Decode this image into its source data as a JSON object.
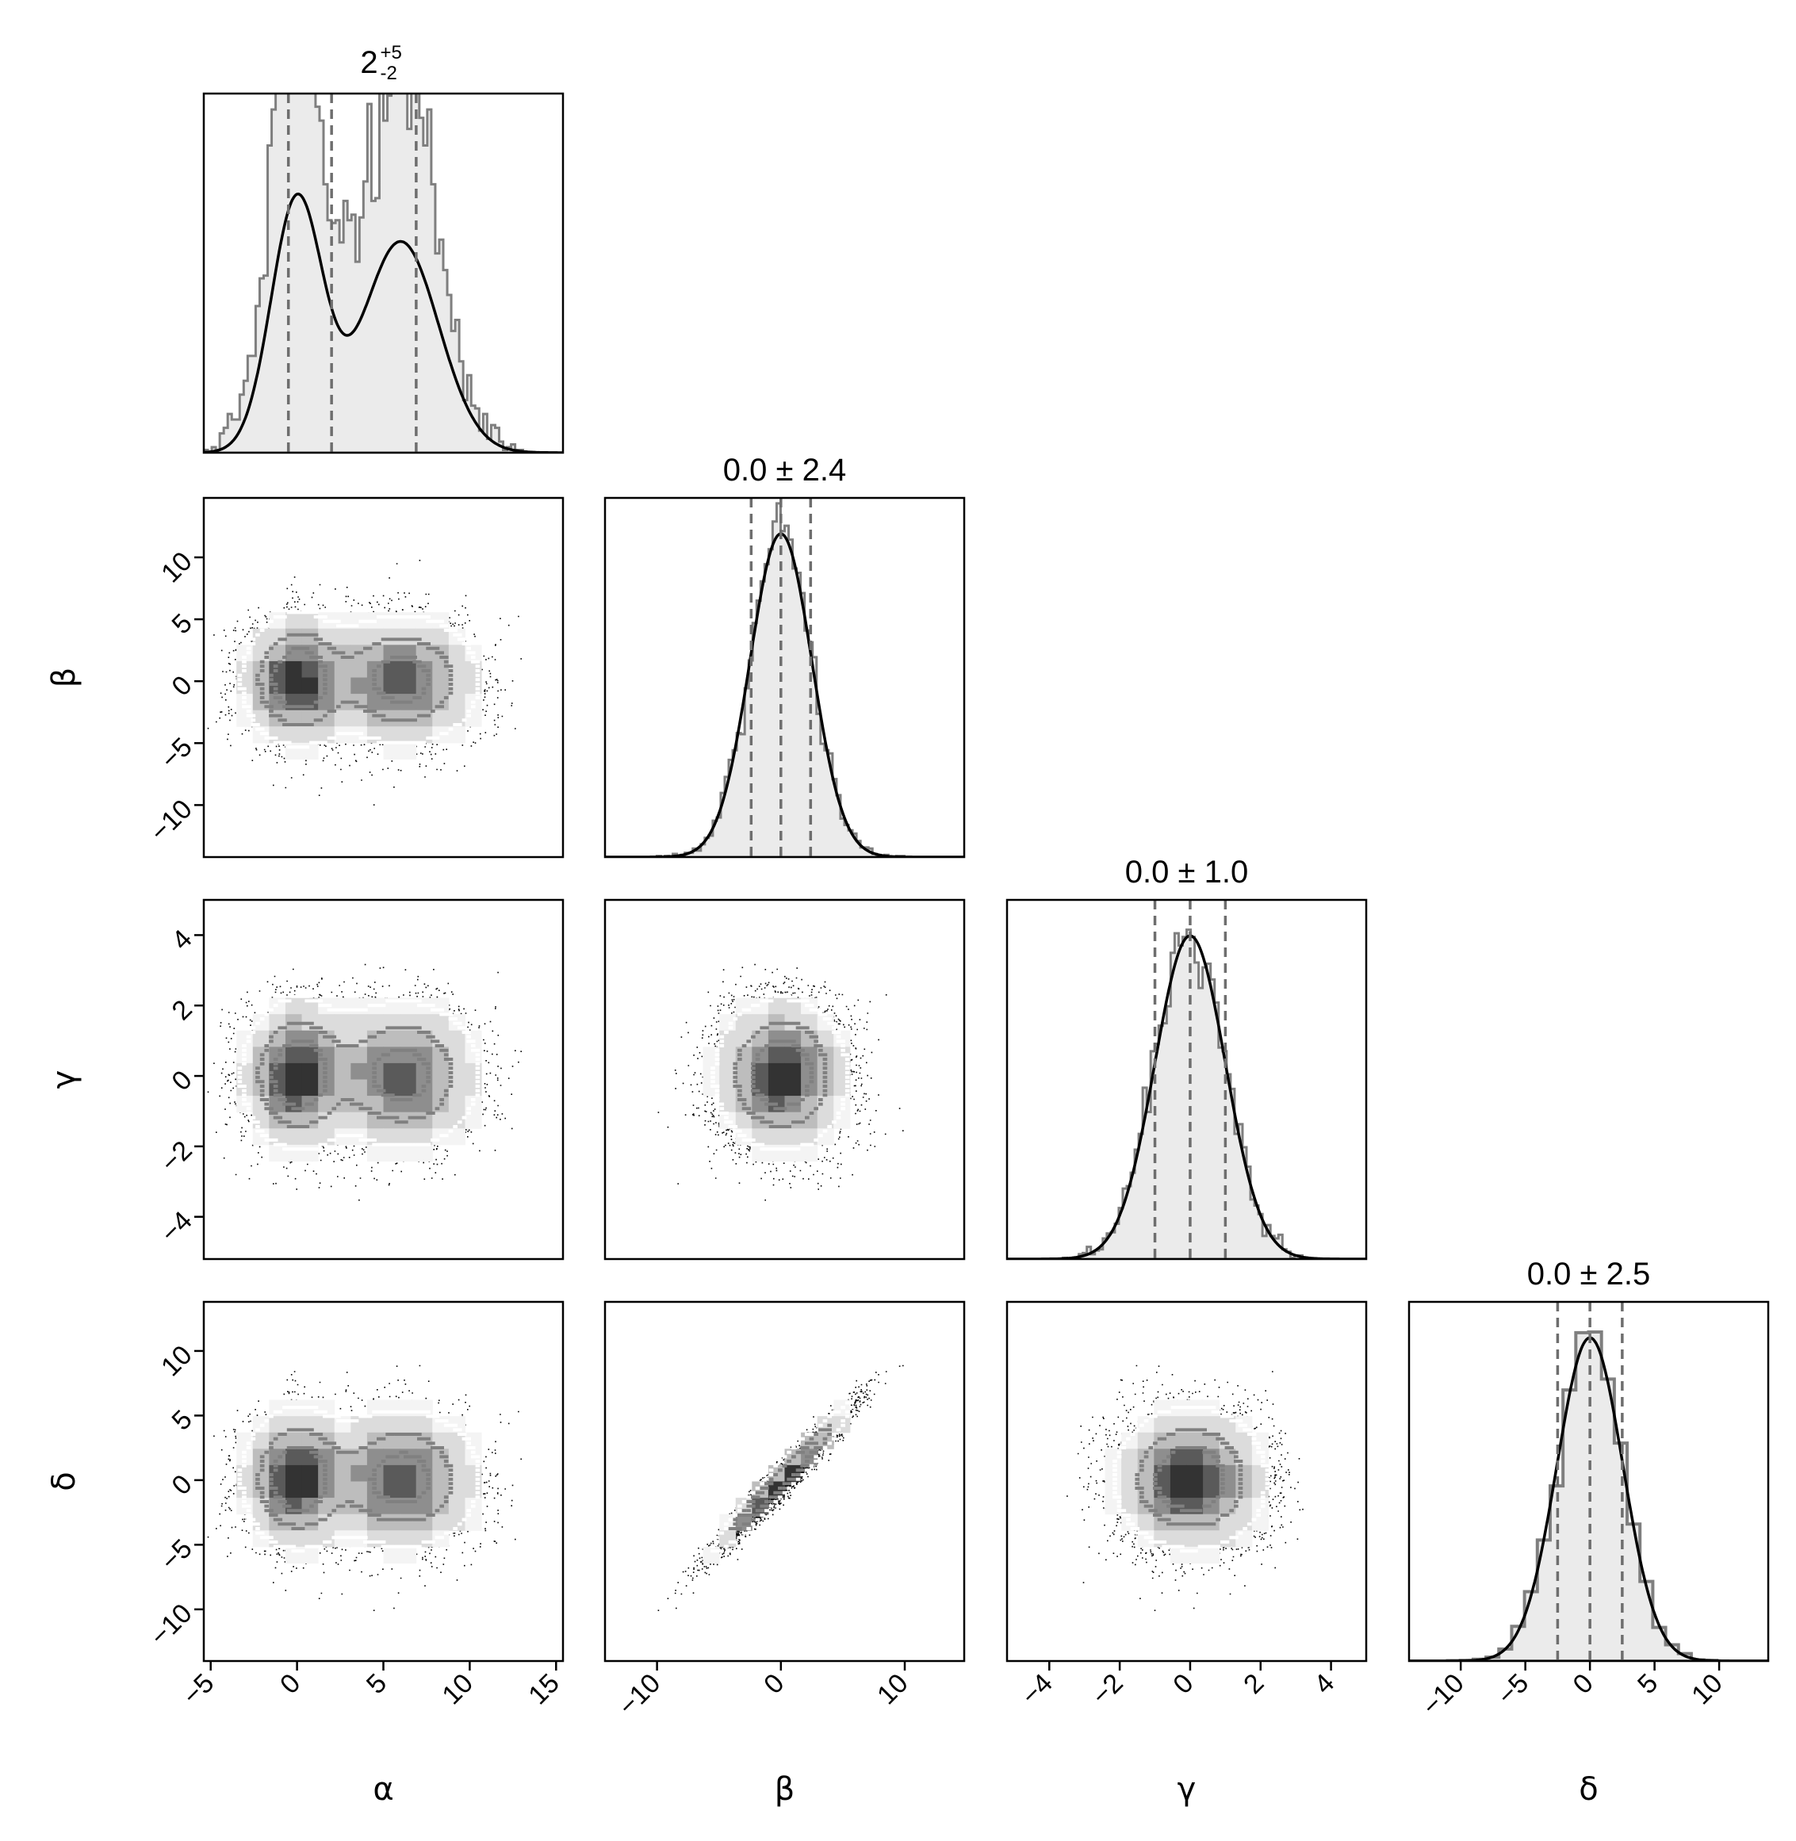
{
  "chart_data": {
    "type": "corner",
    "parameters": [
      {
        "symbol": "α",
        "xlim": [
          -5.4,
          15.4
        ],
        "ticks": [
          -5,
          0,
          5,
          10,
          15
        ],
        "tick_labels": [
          "−5",
          "0",
          "5",
          "10",
          "15"
        ],
        "title_main": "2",
        "title_sup": "+5",
        "title_sub": "-2",
        "quantiles": [
          -0.5,
          2.0,
          6.9
        ]
      },
      {
        "symbol": "β",
        "xlim": [
          -14.2,
          14.8
        ],
        "ticks": [
          -10,
          -5,
          0,
          5,
          10
        ],
        "tick_labels": [
          "−10",
          "−5",
          "0",
          "5",
          "10"
        ],
        "title": "0.0 ± 2.4",
        "quantiles": [
          -2.4,
          0.0,
          2.4
        ]
      },
      {
        "symbol": "γ",
        "xlim": [
          -5.2,
          5.0
        ],
        "ticks": [
          -4,
          -2,
          0,
          2,
          4
        ],
        "tick_labels": [
          "−4",
          "−2",
          "0",
          "2",
          "4"
        ],
        "title": "0.0 ± 1.0",
        "quantiles": [
          -1.0,
          0.0,
          1.0
        ]
      },
      {
        "symbol": "δ",
        "xlim": [
          -14.0,
          13.8
        ],
        "ticks": [
          -10,
          -5,
          0,
          5,
          10
        ],
        "tick_labels": [
          "−10",
          "−5",
          "0",
          "5",
          "10"
        ],
        "title": "0.0 ± 2.5",
        "quantiles": [
          -2.5,
          0.0,
          2.5
        ]
      }
    ],
    "x_tick_params": [
      [
        "−5",
        "0",
        "5",
        "10",
        "15"
      ],
      [
        "−10",
        "0",
        "10"
      ],
      [
        "−4",
        "−2",
        "0",
        "2",
        "4"
      ],
      [
        "−10",
        "−5",
        "0",
        "5",
        "10"
      ]
    ],
    "distributions": {
      "α": {
        "kind": "bimodal",
        "components": [
          {
            "weight": 0.45,
            "mean": 0.0,
            "sd": 1.5
          },
          {
            "weight": 0.55,
            "mean": 6.0,
            "sd": 2.2
          }
        ]
      },
      "β": {
        "kind": "normal",
        "mean": 0.0,
        "sd": 2.5
      },
      "γ": {
        "kind": "normal",
        "mean": 0.0,
        "sd": 1.0
      },
      "δ": {
        "kind": "normal",
        "mean": 0.0,
        "sd": 2.55,
        "correlation_with_β": 0.97
      }
    },
    "xlabel_row": [
      "α",
      "β",
      "γ",
      "δ"
    ],
    "ylabel_col": [
      "β",
      "γ",
      "δ"
    ],
    "colors": {
      "hist_fill": "#ebebeb",
      "hist_step": "#7f7f7f",
      "kde_line": "#000000",
      "quantile_line": "#6e6e6e",
      "scatter": "#000000",
      "contour": "#808080"
    }
  }
}
